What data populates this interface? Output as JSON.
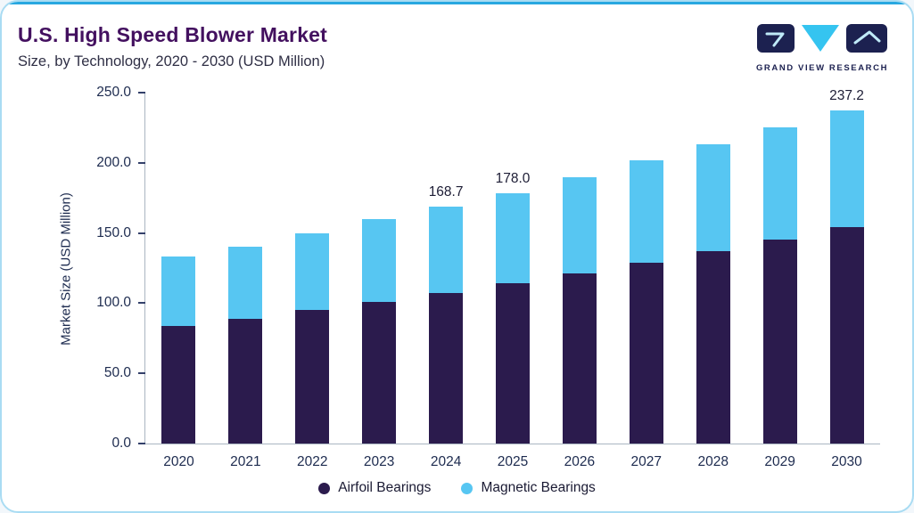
{
  "header": {
    "title": "U.S. High Speed Blower Market",
    "subtitle": "Size, by Technology, 2020 - 2030 (USD Million)",
    "logo_text": "GRAND VIEW RESEARCH"
  },
  "theme": {
    "accent_blue": "#29a8e0",
    "card_border": "#a9dcf3",
    "title_color": "#43105f",
    "bar_dark": "#2b1b4d",
    "bar_light": "#57c6f2",
    "logo_navy": "#1c2150"
  },
  "chart_data": {
    "type": "bar",
    "stacked": true,
    "title": "U.S. High Speed Blower Market Size, by Technology, 2020 - 2030 (USD Million)",
    "categories": [
      "2020",
      "2021",
      "2022",
      "2023",
      "2024",
      "2025",
      "2026",
      "2027",
      "2028",
      "2029",
      "2030"
    ],
    "series": [
      {
        "name": "Airfoil Bearings",
        "color": "#2b1b4d",
        "values": [
          84,
          89,
          95,
          101,
          107,
          114,
          121,
          129,
          137,
          145,
          154
        ]
      },
      {
        "name": "Magnetic Bearings",
        "color": "#57c6f2",
        "values": [
          49.5,
          51.5,
          55,
          59,
          61.7,
          64,
          69,
          73,
          76.5,
          80.5,
          83.2
        ]
      }
    ],
    "totals": [
      133.5,
      140.5,
      150,
      160,
      168.7,
      178,
      190,
      202,
      213.5,
      225.5,
      237.2
    ],
    "data_labels": {
      "2024": "168.7",
      "2025": "178.0",
      "2030": "237.2"
    },
    "xlabel": "",
    "ylabel": "Market Size (USD Million)",
    "ylim": [
      0,
      250
    ],
    "yticks": [
      "0.0",
      "50.0",
      "100.0",
      "150.0",
      "200.0",
      "250.0"
    ],
    "grid": false,
    "legend_position": "bottom"
  }
}
